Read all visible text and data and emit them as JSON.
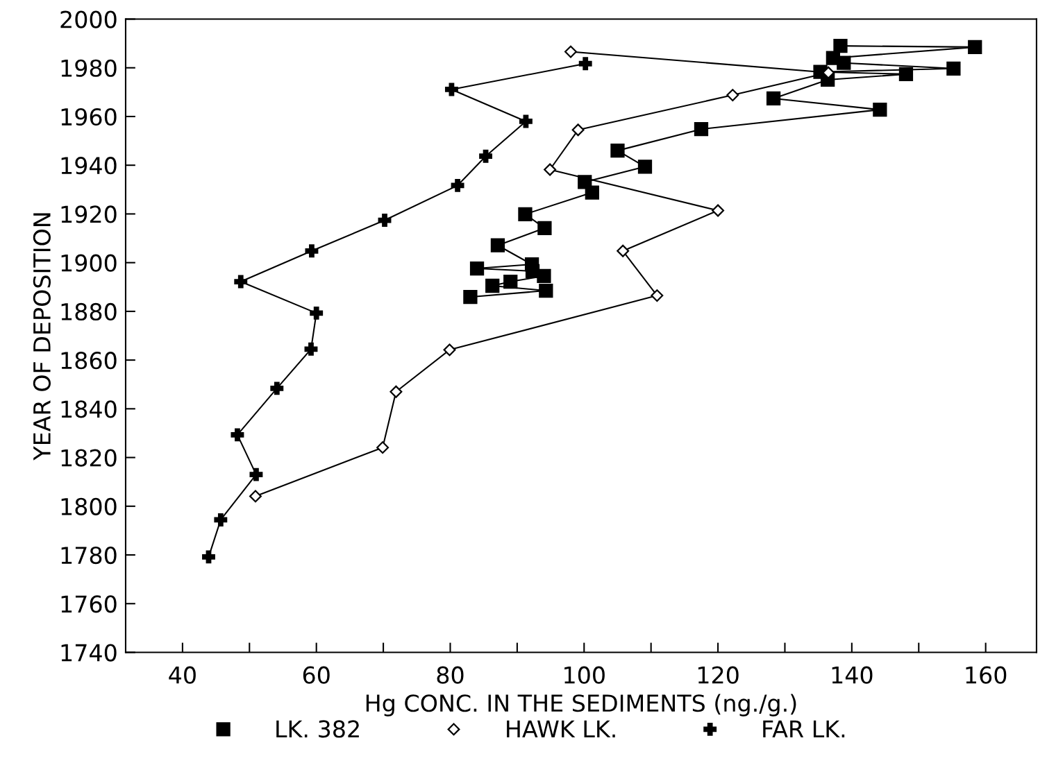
{
  "chart_data": {
    "type": "line",
    "xlabel": "Hg CONC. IN THE SEDIMENTS (ng./g.)",
    "ylabel": "YEAR OF DEPOSITION",
    "xlim": [
      31.5,
      167.6
    ],
    "ylim": [
      1740,
      2000
    ],
    "xticks": [
      40,
      {
        "value": 50,
        "label": null
      },
      60,
      {
        "value": 70,
        "label": null
      },
      80,
      {
        "value": 90,
        "label": null
      },
      100,
      {
        "value": 110,
        "label": null
      },
      120,
      {
        "value": 130,
        "label": null
      },
      140,
      {
        "value": 150,
        "label": null
      },
      160
    ],
    "yticks": [
      1740,
      1760,
      1780,
      1800,
      1820,
      1840,
      1860,
      1880,
      1900,
      1920,
      1940,
      1960,
      1980,
      2000
    ],
    "grid": false,
    "legend": "bottom",
    "line_style": "solid",
    "series": [
      {
        "name": "LK. 382",
        "color": "#000000",
        "marker": "square",
        "x": [
          138.3,
          158.4,
          137.2,
          138.8,
          155.2,
          135.3,
          148.1,
          136.4,
          128.3,
          144.2,
          117.5,
          105,
          109.1,
          100.1,
          101.2,
          91.2,
          94.1,
          87.1,
          92.2,
          84,
          92.3,
          94,
          89,
          86.3,
          94.3,
          83
        ],
        "values": [
          1989,
          1988.5,
          1984,
          1982,
          1979.7,
          1978.3,
          1977.4,
          1975.1,
          1967.4,
          1962.8,
          1954.8,
          1946,
          1939.4,
          1933.1,
          1928.8,
          1919.9,
          1914.2,
          1907.1,
          1899.3,
          1897.6,
          1896.5,
          1894.5,
          1892.2,
          1890.5,
          1888.5,
          1885.9
        ]
      },
      {
        "name": "HAWK LK.",
        "color": "#000000",
        "marker": "diamond",
        "x": [
          98,
          136.5,
          122.2,
          99.1,
          94.9,
          120,
          105.8,
          110.9,
          79.9,
          71.9,
          69.9,
          50.9
        ],
        "values": [
          1986.6,
          1978,
          1968.8,
          1954.5,
          1938.2,
          1921.4,
          1904.8,
          1886.5,
          1864.2,
          1847,
          1824.1,
          1804.1
        ]
      },
      {
        "name": "FAR LK.",
        "color": "#000000",
        "marker": "cross",
        "x": [
          100.2,
          80.2,
          91.3,
          85.3,
          81.1,
          70.2,
          59.3,
          48.7,
          60,
          59.2,
          54.1,
          48.2,
          51,
          45.7,
          43.9
        ],
        "values": [
          1981.7,
          1971.1,
          1958,
          1943.7,
          1931.7,
          1917.4,
          1904.8,
          1892.2,
          1879.3,
          1864.5,
          1848.4,
          1829.3,
          1813,
          1794.4,
          1779.2
        ]
      }
    ]
  }
}
